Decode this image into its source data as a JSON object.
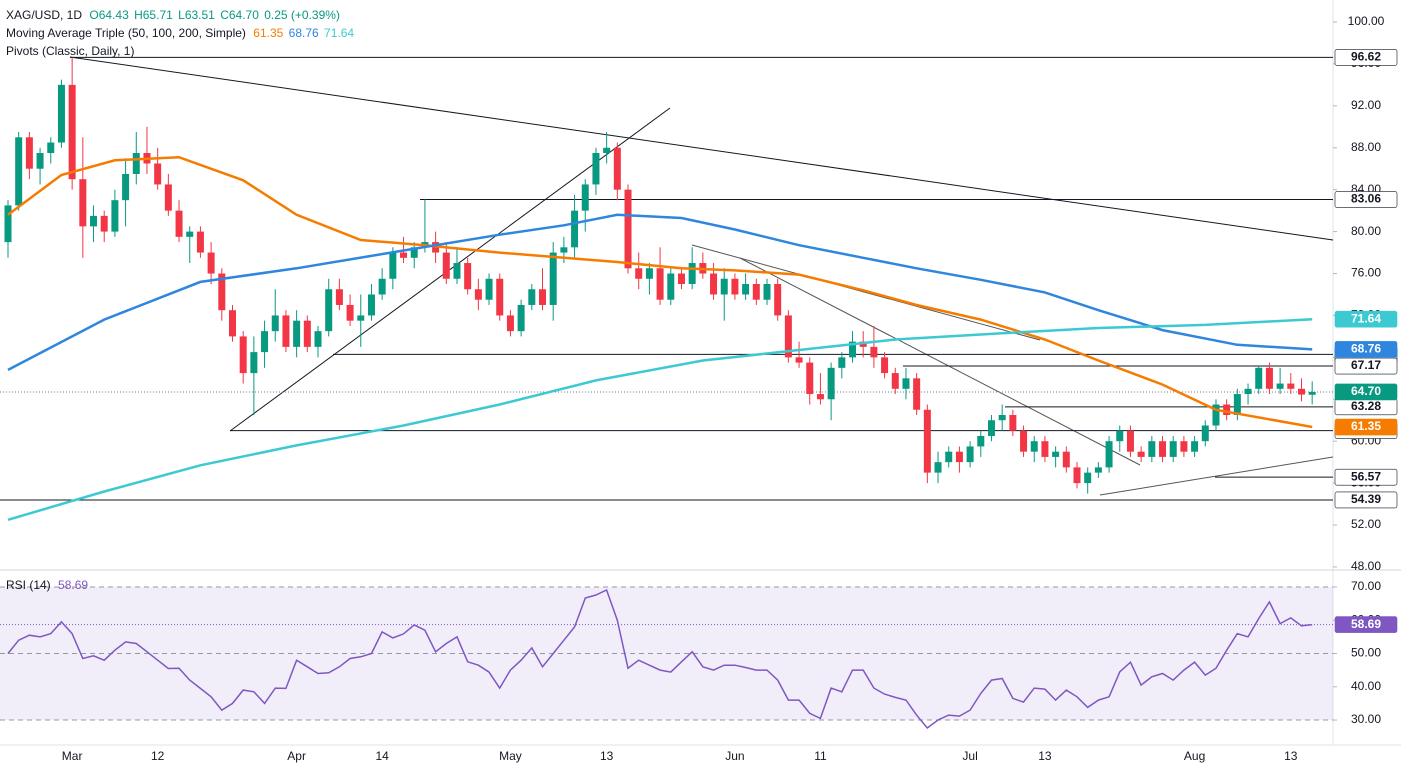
{
  "header": {
    "symbol": "XAG/USD, 1D",
    "open": "O64.43",
    "high": "H65.71",
    "low": "L63.51",
    "close": "C64.70",
    "change": "0.25 (+0.39%)",
    "ma_title": "Moving Average Triple (50, 100, 200, Simple)",
    "pivots_title": "Pivots (Classic, Daily, 1)"
  },
  "chart_data": [
    {
      "type": "candlestick",
      "categories": [
        null,
        null,
        null,
        null,
        null,
        null,
        "Mar",
        null,
        null,
        null,
        null,
        null,
        null,
        null,
        "12",
        null,
        null,
        null,
        null,
        null,
        null,
        null,
        null,
        null,
        null,
        null,
        null,
        "Apr",
        null,
        null,
        null,
        null,
        null,
        null,
        null,
        "14",
        null,
        null,
        null,
        null,
        null,
        null,
        null,
        null,
        null,
        null,
        null,
        "May",
        null,
        null,
        null,
        null,
        null,
        null,
        null,
        null,
        "13",
        null,
        null,
        null,
        null,
        null,
        null,
        null,
        null,
        null,
        null,
        null,
        "Jun",
        null,
        null,
        null,
        null,
        null,
        null,
        null,
        "11",
        null,
        null,
        null,
        null,
        null,
        null,
        null,
        null,
        null,
        null,
        null,
        null,
        null,
        "Jul",
        null,
        null,
        null,
        null,
        null,
        null,
        "13",
        null,
        null,
        null,
        null,
        null,
        null,
        null,
        null,
        null,
        null,
        null,
        null,
        null,
        "Aug",
        null,
        null,
        null,
        null,
        null,
        null,
        null,
        null,
        "13",
        null,
        null
      ],
      "ohlc": [
        [
          79,
          83,
          77.5,
          82.5
        ],
        [
          82.5,
          89.5,
          82,
          89
        ],
        [
          89,
          89.5,
          85,
          86
        ],
        [
          86,
          88,
          84.5,
          87.5
        ],
        [
          87.5,
          89,
          86.5,
          88.5
        ],
        [
          88.5,
          94.5,
          88,
          94
        ],
        [
          94,
          96.62,
          84,
          85
        ],
        [
          85,
          89,
          77.5,
          80.5
        ],
        [
          80.5,
          82.5,
          79,
          81.5
        ],
        [
          81.5,
          82,
          79,
          80
        ],
        [
          80,
          84,
          79.5,
          83
        ],
        [
          83,
          87,
          80.5,
          85.5
        ],
        [
          85.5,
          89.5,
          84.5,
          87.5
        ],
        [
          87.5,
          90,
          85.5,
          86.5
        ],
        [
          86.5,
          88,
          84,
          84.5
        ],
        [
          84.5,
          85.5,
          81.5,
          82
        ],
        [
          82,
          83,
          79,
          79.5
        ],
        [
          79.5,
          80.5,
          77,
          80
        ],
        [
          80,
          80.5,
          77.5,
          78
        ],
        [
          78,
          79,
          75,
          76
        ],
        [
          76,
          76.5,
          71.5,
          72.5
        ],
        [
          72.5,
          73,
          69.5,
          70
        ],
        [
          70,
          70.5,
          65.5,
          66.5
        ],
        [
          66.5,
          70,
          62.5,
          68.5
        ],
        [
          68.5,
          71.5,
          67,
          70.5
        ],
        [
          70.5,
          74.5,
          69.5,
          72
        ],
        [
          72,
          72.5,
          68.5,
          69
        ],
        [
          69,
          72.5,
          68,
          71.5
        ],
        [
          71.5,
          72,
          68.5,
          69
        ],
        [
          69,
          71,
          68,
          70.5
        ],
        [
          70.5,
          75.5,
          70,
          74.5
        ],
        [
          74.5,
          75.5,
          72.5,
          73
        ],
        [
          73,
          74,
          71,
          71.5
        ],
        [
          71.5,
          74,
          69,
          72
        ],
        [
          72,
          75,
          71.5,
          74
        ],
        [
          74,
          76.5,
          73.5,
          75.5
        ],
        [
          75.5,
          78.5,
          74.5,
          78
        ],
        [
          78,
          79.5,
          77,
          77.5
        ],
        [
          77.5,
          79,
          76.5,
          78.5
        ],
        [
          78.5,
          83.06,
          78,
          79
        ],
        [
          79,
          80,
          77,
          78
        ],
        [
          78,
          79,
          75,
          75.5
        ],
        [
          75.5,
          78.5,
          75,
          77
        ],
        [
          77,
          77.5,
          74,
          74.5
        ],
        [
          74.5,
          75.5,
          72.5,
          73.5
        ],
        [
          73.5,
          76,
          73,
          75.5
        ],
        [
          75.5,
          76,
          71.5,
          72
        ],
        [
          72,
          72.5,
          70,
          70.5
        ],
        [
          70.5,
          73.5,
          70,
          73
        ],
        [
          73,
          75,
          72.5,
          74.5
        ],
        [
          74.5,
          76.5,
          72.5,
          73
        ],
        [
          73,
          79,
          71.5,
          78
        ],
        [
          78,
          79.5,
          77,
          78.5
        ],
        [
          78.5,
          83.5,
          77.5,
          82
        ],
        [
          82,
          85,
          80,
          84.5
        ],
        [
          84.5,
          88,
          83.5,
          87.5
        ],
        [
          87.5,
          89.5,
          86.5,
          88
        ],
        [
          88,
          88.5,
          83,
          84
        ],
        [
          84,
          84.5,
          76,
          76.5
        ],
        [
          76.5,
          78,
          74.5,
          75.5
        ],
        [
          75.5,
          77,
          74,
          76.5
        ],
        [
          76.5,
          78.5,
          73,
          73.5
        ],
        [
          73.5,
          76.5,
          73,
          76
        ],
        [
          76,
          76.5,
          74.5,
          75
        ],
        [
          75,
          78.5,
          74.5,
          77
        ],
        [
          77,
          78,
          75.5,
          76
        ],
        [
          76,
          77,
          73.5,
          74
        ],
        [
          74,
          76.5,
          71.5,
          75.5
        ],
        [
          75.5,
          76,
          73.5,
          74
        ],
        [
          74,
          76,
          73.5,
          75
        ],
        [
          75,
          75.5,
          73,
          73.5
        ],
        [
          73.5,
          75.5,
          73,
          75
        ],
        [
          75,
          75.5,
          71.5,
          72
        ],
        [
          72,
          72.5,
          67.5,
          68
        ],
        [
          68,
          69.5,
          67,
          67.5
        ],
        [
          67.5,
          68,
          63.5,
          64.5
        ],
        [
          64.5,
          66.5,
          63.5,
          64
        ],
        [
          64,
          67.5,
          62,
          67
        ],
        [
          67,
          68.5,
          66,
          68
        ],
        [
          68,
          70.5,
          67.5,
          69.5
        ],
        [
          69.5,
          70.5,
          68,
          69
        ],
        [
          69,
          71,
          67,
          68
        ],
        [
          68,
          68.5,
          66,
          66.5
        ],
        [
          66.5,
          67,
          64.5,
          65
        ],
        [
          65,
          67,
          64,
          66
        ],
        [
          66,
          66.5,
          62.5,
          63
        ],
        [
          63,
          63.5,
          56,
          57
        ],
        [
          57,
          59,
          56,
          58
        ],
        [
          58,
          59.5,
          57.5,
          59
        ],
        [
          59,
          59.5,
          57,
          58
        ],
        [
          58,
          60,
          57.5,
          59.5
        ],
        [
          59.5,
          61,
          58.5,
          60.5
        ],
        [
          60.5,
          62.5,
          60,
          62
        ],
        [
          62,
          63.5,
          61,
          62.5
        ],
        [
          62.5,
          63,
          60.5,
          61
        ],
        [
          61,
          61.5,
          58.5,
          59
        ],
        [
          59,
          60.5,
          58,
          60
        ],
        [
          60,
          60.5,
          58,
          58.5
        ],
        [
          58.5,
          59.5,
          57.5,
          59
        ],
        [
          59,
          59.5,
          57,
          57.5
        ],
        [
          57.5,
          58,
          55.5,
          56
        ],
        [
          56,
          57.5,
          55,
          57
        ],
        [
          57,
          58,
          56.5,
          57.5
        ],
        [
          57.5,
          60.5,
          57,
          60
        ],
        [
          60,
          61.5,
          59,
          61
        ],
        [
          61,
          61.5,
          58.5,
          59
        ],
        [
          59,
          59.5,
          58,
          58.5
        ],
        [
          58.5,
          60.5,
          58,
          60
        ],
        [
          60,
          60.5,
          58,
          58.5
        ],
        [
          58.5,
          60.5,
          58,
          60
        ],
        [
          60,
          60.5,
          58.5,
          59
        ],
        [
          59,
          60.5,
          58.5,
          60
        ],
        [
          60,
          62,
          59.5,
          61.5
        ],
        [
          61.5,
          64,
          61,
          63.5
        ],
        [
          63.5,
          64,
          62,
          62.5
        ],
        [
          62.5,
          65,
          62,
          64.5
        ],
        [
          64.5,
          65.5,
          63.5,
          65
        ],
        [
          65,
          67.2,
          64.5,
          67
        ],
        [
          67,
          67.5,
          64.5,
          65
        ],
        [
          65,
          67,
          64.5,
          65.5
        ],
        [
          65.5,
          66.5,
          64.5,
          65
        ],
        [
          65,
          66,
          63.8,
          64.45
        ],
        [
          64.43,
          65.71,
          63.51,
          64.7
        ]
      ],
      "up_color": "#089981",
      "down_color": "#f23645",
      "lines": [
        {
          "color": "#f57c00",
          "x": [
            0,
            5,
            10,
            16,
            22,
            27,
            33,
            39,
            46,
            52,
            57,
            63,
            68,
            74,
            80,
            85,
            91,
            97,
            102,
            108,
            113,
            122
          ],
          "values": [
            81.6,
            85.4,
            86.8,
            87.1,
            84.9,
            81.6,
            79.2,
            78.7,
            78,
            77.5,
            77.1,
            76.5,
            76.3,
            75.9,
            74.4,
            73,
            71.6,
            69.7,
            67.7,
            65.4,
            63,
            61.35
          ]
        },
        {
          "color": "#2e86de",
          "x": [
            0,
            9,
            18,
            27,
            37,
            46,
            52,
            57,
            63,
            68,
            74,
            80,
            85,
            91,
            97,
            102,
            108,
            115,
            122
          ],
          "values": [
            66.8,
            71.6,
            75.2,
            76.5,
            78.2,
            79.7,
            80.6,
            81.6,
            81.3,
            80.2,
            78.7,
            77.5,
            76.5,
            75.4,
            74.2,
            72.5,
            70.6,
            69.2,
            68.76
          ]
        },
        {
          "color": "#3dc9d1",
          "x": [
            0,
            9,
            18,
            27,
            37,
            46,
            55,
            65,
            74,
            83,
            93,
            102,
            112,
            122
          ],
          "values": [
            52.5,
            55.2,
            57.7,
            59.6,
            61.5,
            63.5,
            65.8,
            67.7,
            68.7,
            69.7,
            70.3,
            70.8,
            71.1,
            71.64
          ]
        }
      ],
      "pivots": [
        96.62,
        83.06,
        68.28,
        67.17,
        63.28,
        61.01,
        56.57,
        54.39
      ],
      "last_price": {
        "value": 64.7,
        "label": "64.70"
      },
      "ylim": [
        47.9,
        102.1
      ],
      "yticks": [
        {
          "value": 48,
          "label": "48.00"
        },
        {
          "value": 52,
          "label": "52.00"
        },
        {
          "value": 56,
          "label": "56.00"
        },
        {
          "value": 60,
          "label": "60.00"
        },
        {
          "value": 64,
          "label": "64.00"
        },
        {
          "value": 68,
          "label": "68.00"
        },
        {
          "value": 72,
          "label": "72.00"
        },
        {
          "value": 76,
          "label": "76.00"
        },
        {
          "value": 80,
          "label": "80.00"
        },
        {
          "value": 84,
          "label": "84.00"
        },
        {
          "value": 88,
          "label": "88.00"
        },
        {
          "value": 92,
          "label": "92.00"
        },
        {
          "value": 96,
          "label": "96.00"
        },
        {
          "value": 100,
          "label": "100.00"
        }
      ]
    },
    {
      "type": "line",
      "title": "RSI (14)",
      "color": "#7e57c2",
      "values": [
        50,
        54,
        55.5,
        55,
        56,
        59.5,
        56,
        48.5,
        49.3,
        48,
        51,
        53.5,
        53,
        50.5,
        48,
        45.5,
        45.6,
        42,
        39.5,
        37,
        33,
        35,
        39,
        38.5,
        35,
        39.6,
        39.5,
        48,
        46,
        44,
        44.2,
        46,
        48.5,
        49,
        50,
        56.5,
        54.7,
        55.9,
        58.6,
        57,
        50.5,
        53,
        55,
        47.5,
        46.5,
        44.4,
        39.6,
        45,
        48,
        51.7,
        46,
        50,
        54,
        58,
        66.7,
        67.6,
        69.1,
        60,
        45.6,
        48,
        46.5,
        45,
        44.4,
        47.5,
        50.5,
        46,
        45,
        46.5,
        46.5,
        45.8,
        45,
        45,
        42,
        36,
        36,
        32,
        30.5,
        39.6,
        38.5,
        45,
        45,
        39.6,
        37.8,
        36.8,
        36,
        31.5,
        27.6,
        30,
        31.5,
        31.2,
        33,
        38,
        42,
        42.5,
        36.5,
        35.4,
        39.6,
        39.3,
        36,
        39,
        37,
        33.8,
        36,
        37,
        44.5,
        47.4,
        40.5,
        43,
        44,
        42,
        45,
        47.4,
        43.5,
        45.6,
        51,
        56,
        55,
        60.5,
        65.5,
        59,
        60.7,
        58.3,
        58.69
      ],
      "band": [
        30,
        70
      ],
      "midline": 50,
      "ylim": [
        22.5,
        73.6
      ],
      "yticks": [
        {
          "value": 30,
          "label": "30.00"
        },
        {
          "value": 40,
          "label": "40.00"
        },
        {
          "value": 50,
          "label": "50.00"
        },
        {
          "value": 60,
          "label": "60.00"
        },
        {
          "value": 70,
          "label": "70.00"
        }
      ]
    }
  ]
}
